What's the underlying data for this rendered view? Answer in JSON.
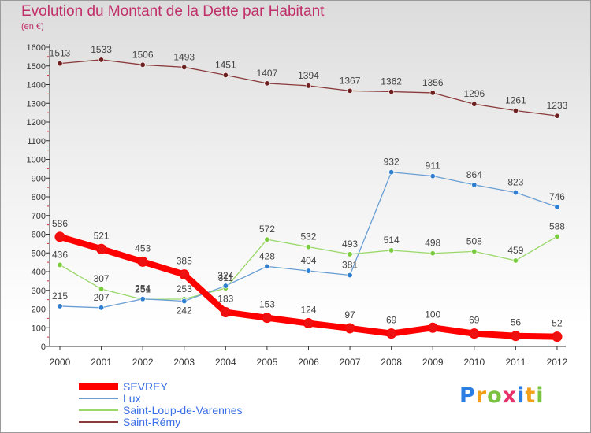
{
  "title": "Evolution du Montant de la Dette par Habitant",
  "subtitle": "(en €)",
  "logo": "Proxiti",
  "chart_data": {
    "type": "line",
    "x": [
      "2000",
      "2001",
      "2002",
      "2003",
      "2004",
      "2005",
      "2006",
      "2007",
      "2008",
      "2009",
      "2010",
      "2011",
      "2012"
    ],
    "ylim": [
      0,
      1600
    ],
    "yticks": [
      0,
      100,
      200,
      300,
      400,
      500,
      600,
      700,
      800,
      900,
      1000,
      1100,
      1200,
      1300,
      1400,
      1500,
      1600
    ],
    "grid": false,
    "legend_position": "bottom-left",
    "series": [
      {
        "name": "SEVREY",
        "color": "#ff0000",
        "dot": "#ee1111",
        "width": 8,
        "radius": 6,
        "values": [
          586,
          521,
          453,
          385,
          183,
          153,
          124,
          97,
          69,
          100,
          69,
          56,
          52
        ],
        "label_dy": [
          -13,
          -13,
          -13,
          -13,
          -13,
          -13,
          -13,
          -13,
          -13,
          -13,
          -13,
          -13,
          -13
        ]
      },
      {
        "name": "Lux",
        "color": "#6a9fd4",
        "dot": "#2f7fd0",
        "width": 1.3,
        "radius": 3.2,
        "values": [
          215,
          207,
          254,
          242,
          324,
          428,
          404,
          381,
          932,
          911,
          864,
          823,
          746
        ],
        "label_dy": [
          -9,
          -9,
          -9,
          16,
          -9,
          -9,
          -9,
          -9,
          -9,
          -9,
          -9,
          -9,
          -9
        ]
      },
      {
        "name": "Saint-Loup-de-Varennes",
        "color": "#9ad86a",
        "dot": "#7ccc40",
        "width": 1.3,
        "radius": 3.2,
        "values": [
          436,
          307,
          251,
          253,
          311,
          572,
          532,
          493,
          514,
          498,
          508,
          459,
          588
        ],
        "label_dy": [
          -9,
          -9,
          -9,
          -9,
          -9,
          -9,
          -9,
          -9,
          -9,
          -9,
          -9,
          -9,
          -9
        ]
      },
      {
        "name": "Saint-Rémy",
        "color": "#8a3a3a",
        "dot": "#6e2020",
        "width": 1.3,
        "radius": 3.2,
        "values": [
          1513,
          1533,
          1506,
          1493,
          1451,
          1407,
          1394,
          1367,
          1362,
          1356,
          1296,
          1261,
          1233
        ],
        "label_dy": [
          -9,
          -9,
          -9,
          -9,
          -9,
          -9,
          -9,
          -9,
          -9,
          -9,
          -9,
          -9,
          -9
        ]
      }
    ]
  }
}
